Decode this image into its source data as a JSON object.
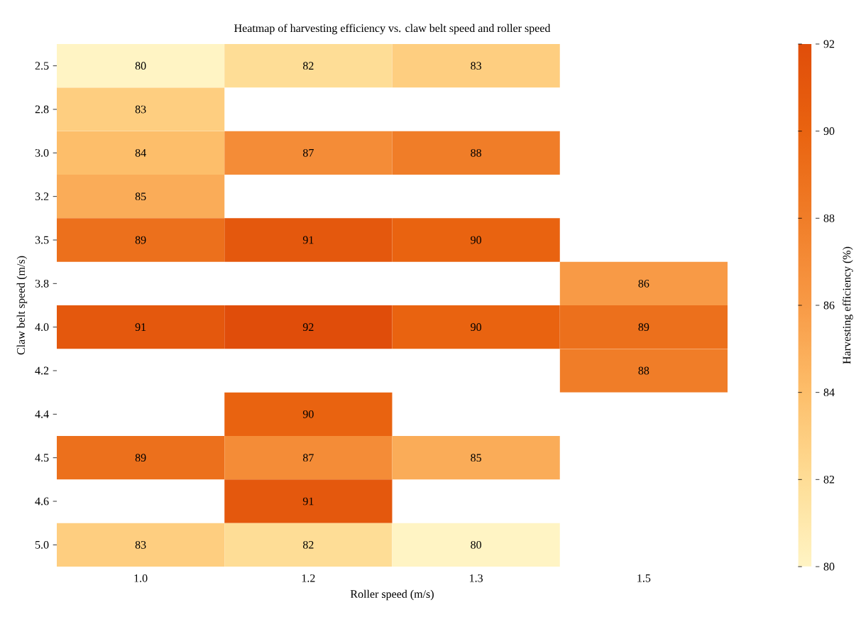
{
  "chart_data": {
    "type": "heatmap",
    "title": "Heatmap of harvesting efficiency vs. claw belt speed and roller speed",
    "xlabel": "Roller speed (m/s)",
    "ylabel": "Claw belt speed (m/s)",
    "clabel": "Harvesting efficiency (%)",
    "categories": [
      "1.0",
      "1.2",
      "1.3",
      "1.5"
    ],
    "y_categories": [
      "2.5",
      "2.8",
      "3.0",
      "3.2",
      "3.5",
      "3.8",
      "4.0",
      "4.2",
      "4.4",
      "4.5",
      "4.6",
      "5.0"
    ],
    "cells": [
      [
        80,
        82,
        83,
        null
      ],
      [
        83,
        null,
        null,
        null
      ],
      [
        84,
        87,
        88,
        null
      ],
      [
        85,
        null,
        null,
        null
      ],
      [
        89,
        91,
        90,
        null
      ],
      [
        null,
        null,
        null,
        86
      ],
      [
        91,
        92,
        90,
        89
      ],
      [
        null,
        null,
        null,
        88
      ],
      [
        null,
        90,
        null,
        null
      ],
      [
        89,
        87,
        85,
        null
      ],
      [
        null,
        91,
        null,
        null
      ],
      [
        83,
        82,
        80,
        null
      ]
    ],
    "clim": [
      80,
      92
    ],
    "cticks": [
      80,
      82,
      84,
      86,
      88,
      90,
      92
    ],
    "data_labels": true
  }
}
